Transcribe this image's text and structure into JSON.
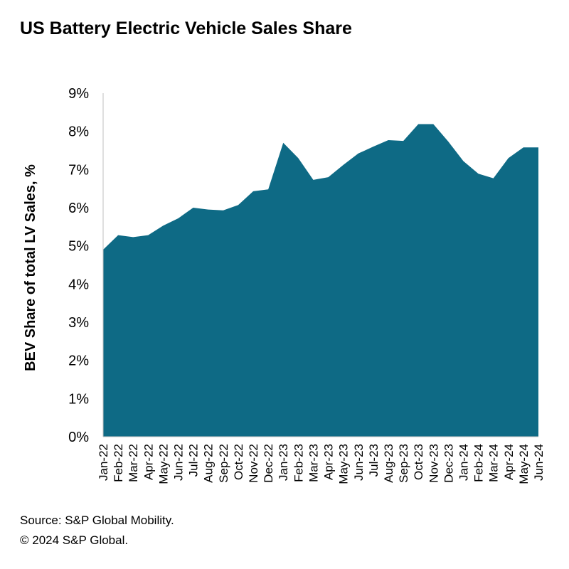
{
  "title": "US Battery Electric Vehicle Sales Share",
  "source": "Source: S&P Global Mobility.",
  "copyright": "© 2024 S&P Global.",
  "colors": {
    "area": "#0e6a85",
    "axis": "#bfbfbf"
  },
  "chart_data": {
    "type": "area",
    "ylabel": "BEV Share of total LV Sales, %",
    "ylim": [
      0,
      9
    ],
    "yticks": [
      "0%",
      "1%",
      "2%",
      "3%",
      "4%",
      "5%",
      "6%",
      "7%",
      "8%",
      "9%"
    ],
    "grid": false,
    "categories": [
      "Jan-22",
      "Feb-22",
      "Mar-22",
      "Apr-22",
      "May-22",
      "Jun-22",
      "Jul-22",
      "Aug-22",
      "Sep-22",
      "Oct-22",
      "Nov-22",
      "Dec-22",
      "Jan-23",
      "Feb-23",
      "Mar-23",
      "Apr-23",
      "May-23",
      "Jun-23",
      "Jul-23",
      "Aug-23",
      "Sep-23",
      "Oct-23",
      "Nov-23",
      "Dec-23",
      "Jan-24",
      "Feb-24",
      "Mar-24",
      "Apr-24",
      "May-24",
      "Jun-24"
    ],
    "series": [
      {
        "values": [
          4.9,
          5.28,
          5.23,
          5.28,
          5.53,
          5.72,
          6.0,
          5.95,
          5.93,
          6.07,
          6.43,
          6.48,
          7.7,
          7.3,
          6.73,
          6.8,
          7.12,
          7.42,
          7.6,
          7.77,
          7.75,
          8.19,
          8.19,
          7.73,
          7.22,
          6.89,
          6.77,
          7.3,
          7.58,
          7.58
        ]
      }
    ]
  }
}
